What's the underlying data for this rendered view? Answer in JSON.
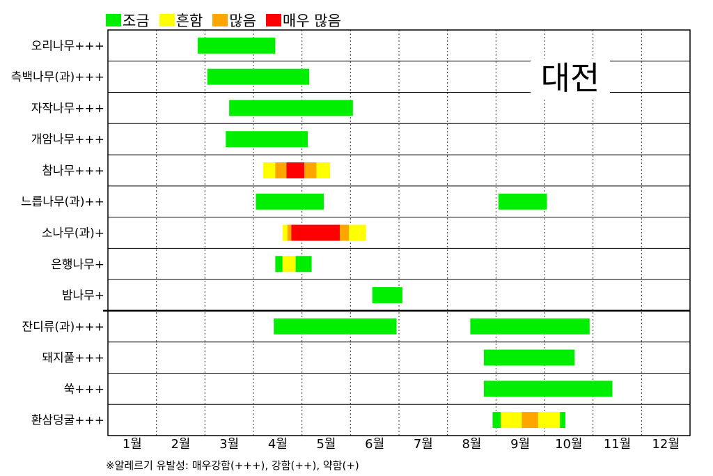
{
  "chart_data": {
    "type": "gantt",
    "months": [
      "1월",
      "2월",
      "3월",
      "4월",
      "5월",
      "6월",
      "7월",
      "8월",
      "9월",
      "10월",
      "11월",
      "12월"
    ],
    "x_range": [
      0,
      12
    ],
    "grid": "dotted-vertical",
    "legend_position": "top",
    "levels": [
      {
        "key": "low",
        "label": "조금",
        "color": "#00ee00"
      },
      {
        "key": "mid",
        "label": "흔함",
        "color": "#ffff00"
      },
      {
        "key": "high",
        "label": "많음",
        "color": "#ffa500"
      },
      {
        "key": "vhigh",
        "label": "매우 많음",
        "color": "#ff0000"
      }
    ],
    "stamp": "대전",
    "footnote": "※알레르기 유발성: 매우강함(+++), 강함(++), 약함(+)",
    "divider_after_row": 9,
    "rows": [
      {
        "label": "오리나무+++",
        "segments": [
          {
            "start": 1.85,
            "end": 3.45,
            "level": "low"
          }
        ]
      },
      {
        "label": "측백나무(과)+++",
        "segments": [
          {
            "start": 2.05,
            "end": 4.15,
            "level": "low"
          }
        ]
      },
      {
        "label": "자작나무+++",
        "segments": [
          {
            "start": 2.5,
            "end": 5.05,
            "level": "low"
          }
        ]
      },
      {
        "label": "개암나무+++",
        "segments": [
          {
            "start": 2.43,
            "end": 4.12,
            "level": "low"
          }
        ]
      },
      {
        "label": "참나무+++",
        "segments": [
          {
            "start": 3.2,
            "end": 3.45,
            "level": "mid"
          },
          {
            "start": 3.45,
            "end": 3.68,
            "level": "high"
          },
          {
            "start": 3.68,
            "end": 4.05,
            "level": "vhigh"
          },
          {
            "start": 4.05,
            "end": 4.3,
            "level": "high"
          },
          {
            "start": 4.3,
            "end": 4.58,
            "level": "mid"
          }
        ]
      },
      {
        "label": "느릅나무(과)++",
        "segments": [
          {
            "start": 3.05,
            "end": 4.45,
            "level": "low"
          },
          {
            "start": 8.05,
            "end": 9.05,
            "level": "low"
          }
        ]
      },
      {
        "label": "소나무(과)+",
        "segments": [
          {
            "start": 3.6,
            "end": 3.7,
            "level": "mid"
          },
          {
            "start": 3.7,
            "end": 3.78,
            "level": "high"
          },
          {
            "start": 3.78,
            "end": 4.78,
            "level": "vhigh"
          },
          {
            "start": 4.78,
            "end": 4.97,
            "level": "high"
          },
          {
            "start": 4.97,
            "end": 5.32,
            "level": "mid"
          }
        ]
      },
      {
        "label": "은행나무+",
        "segments": [
          {
            "start": 3.45,
            "end": 3.6,
            "level": "low"
          },
          {
            "start": 3.6,
            "end": 3.87,
            "level": "mid"
          },
          {
            "start": 3.87,
            "end": 4.2,
            "level": "low"
          }
        ]
      },
      {
        "label": "밤나무+",
        "segments": [
          {
            "start": 5.45,
            "end": 6.07,
            "level": "low"
          }
        ]
      },
      {
        "label": "잔디류(과)+++",
        "segments": [
          {
            "start": 3.42,
            "end": 5.95,
            "level": "low"
          },
          {
            "start": 7.47,
            "end": 9.93,
            "level": "low"
          }
        ]
      },
      {
        "label": "돼지풀+++",
        "segments": [
          {
            "start": 7.75,
            "end": 9.62,
            "level": "low"
          }
        ]
      },
      {
        "label": "쑥+++",
        "segments": [
          {
            "start": 7.75,
            "end": 10.4,
            "level": "low"
          }
        ]
      },
      {
        "label": "환삼덩굴+++",
        "segments": [
          {
            "start": 7.93,
            "end": 8.1,
            "level": "low"
          },
          {
            "start": 8.1,
            "end": 8.53,
            "level": "mid"
          },
          {
            "start": 8.53,
            "end": 8.87,
            "level": "high"
          },
          {
            "start": 8.87,
            "end": 9.32,
            "level": "mid"
          },
          {
            "start": 9.32,
            "end": 9.43,
            "level": "low"
          }
        ]
      }
    ]
  }
}
